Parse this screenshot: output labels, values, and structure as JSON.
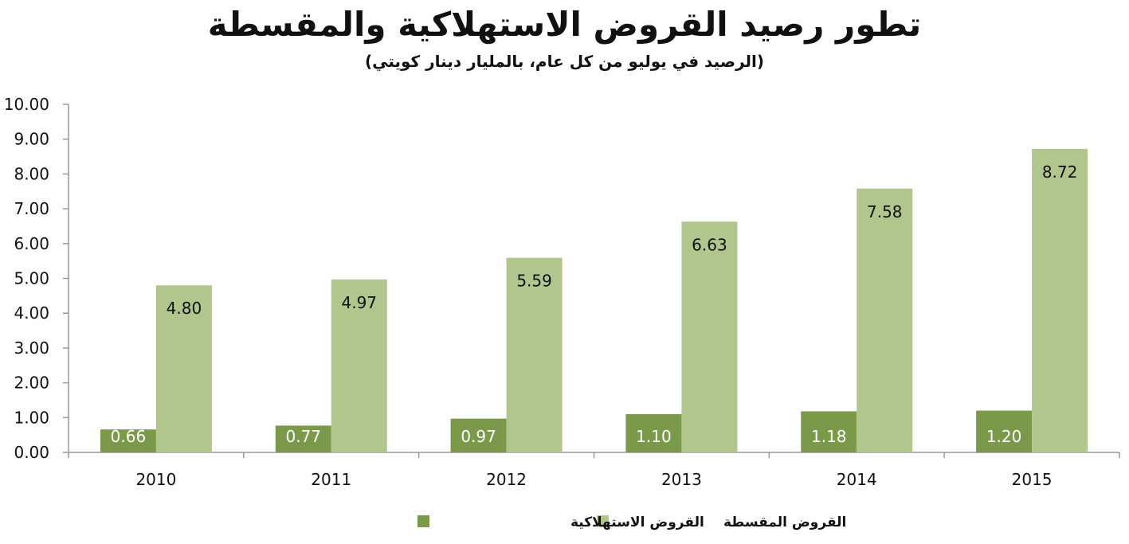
{
  "title": "تطور رصيد القروض الاستهلاكية والمقسطة",
  "subtitle": "(الرصيد في يوليو من كل عام، بالمليار دينار كويتي)",
  "colors": {
    "consumer": "#7a9a4a",
    "installment": "#b0c68c",
    "axis": "#999999"
  },
  "chart_data": {
    "type": "bar",
    "categories": [
      "2010",
      "2011",
      "2012",
      "2013",
      "2014",
      "2015"
    ],
    "series": [
      {
        "name": "القروض الاستهلاكية",
        "values": [
          0.66,
          0.77,
          0.97,
          1.1,
          1.18,
          1.2
        ]
      },
      {
        "name": "القروض المقسطة",
        "values": [
          4.8,
          4.97,
          5.59,
          6.63,
          7.58,
          8.72
        ]
      }
    ],
    "y_ticks": [
      "0.00",
      "1.00",
      "2.00",
      "3.00",
      "4.00",
      "5.00",
      "6.00",
      "7.00",
      "8.00",
      "9.00",
      "10.00"
    ],
    "ylim": [
      0,
      10
    ],
    "grid": false,
    "legend": "bottom-center"
  }
}
